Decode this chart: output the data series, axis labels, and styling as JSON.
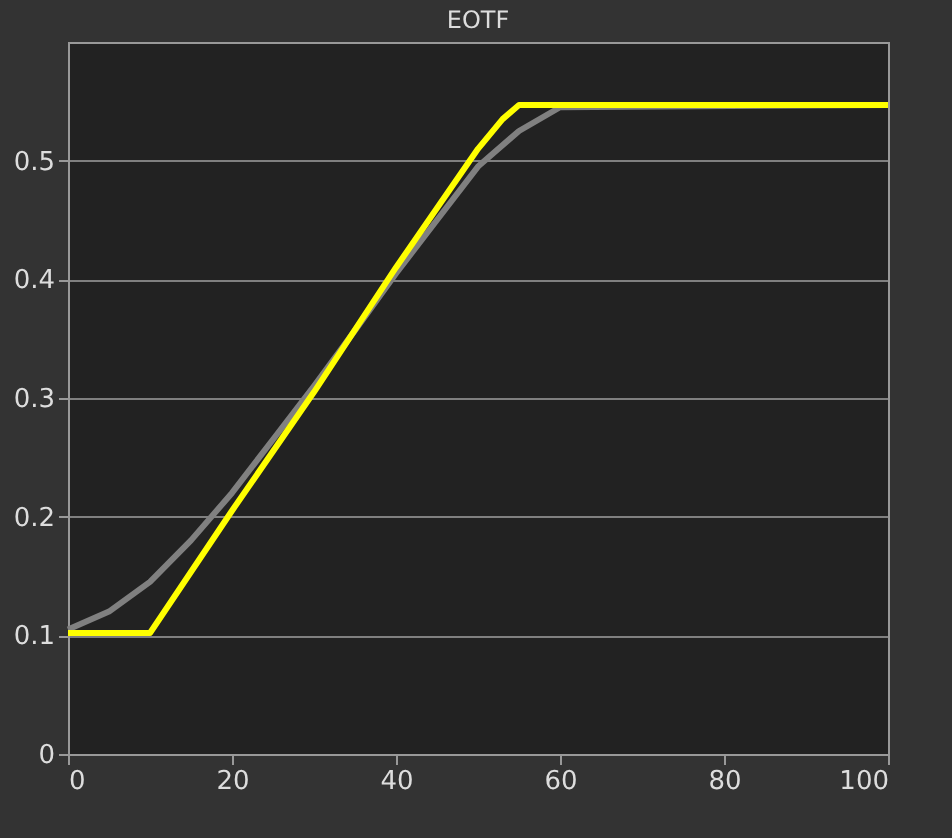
{
  "chart_data": {
    "type": "line",
    "title": "EOTF",
    "xlim": [
      0,
      100
    ],
    "xticks": [
      0,
      20,
      40,
      60,
      80,
      100
    ],
    "ylim": [
      0,
      0.6
    ],
    "yticks": [
      0,
      0.1,
      0.2,
      0.3,
      0.4,
      0.5
    ],
    "grid": "y",
    "series": [
      {
        "color": "#808080",
        "x": [
          0,
          5,
          10,
          15,
          20,
          25,
          30,
          35,
          40,
          45,
          50,
          55,
          60,
          100
        ],
        "values": [
          0.105,
          0.12,
          0.145,
          0.18,
          0.22,
          0.265,
          0.31,
          0.357,
          0.405,
          0.45,
          0.495,
          0.525,
          0.545,
          0.547
        ]
      },
      {
        "color": "#ffff00",
        "x": [
          0,
          10,
          20,
          30,
          40,
          50,
          53,
          55,
          100
        ],
        "values": [
          0.102,
          0.102,
          0.205,
          0.305,
          0.41,
          0.51,
          0.535,
          0.547,
          0.547
        ]
      }
    ]
  }
}
